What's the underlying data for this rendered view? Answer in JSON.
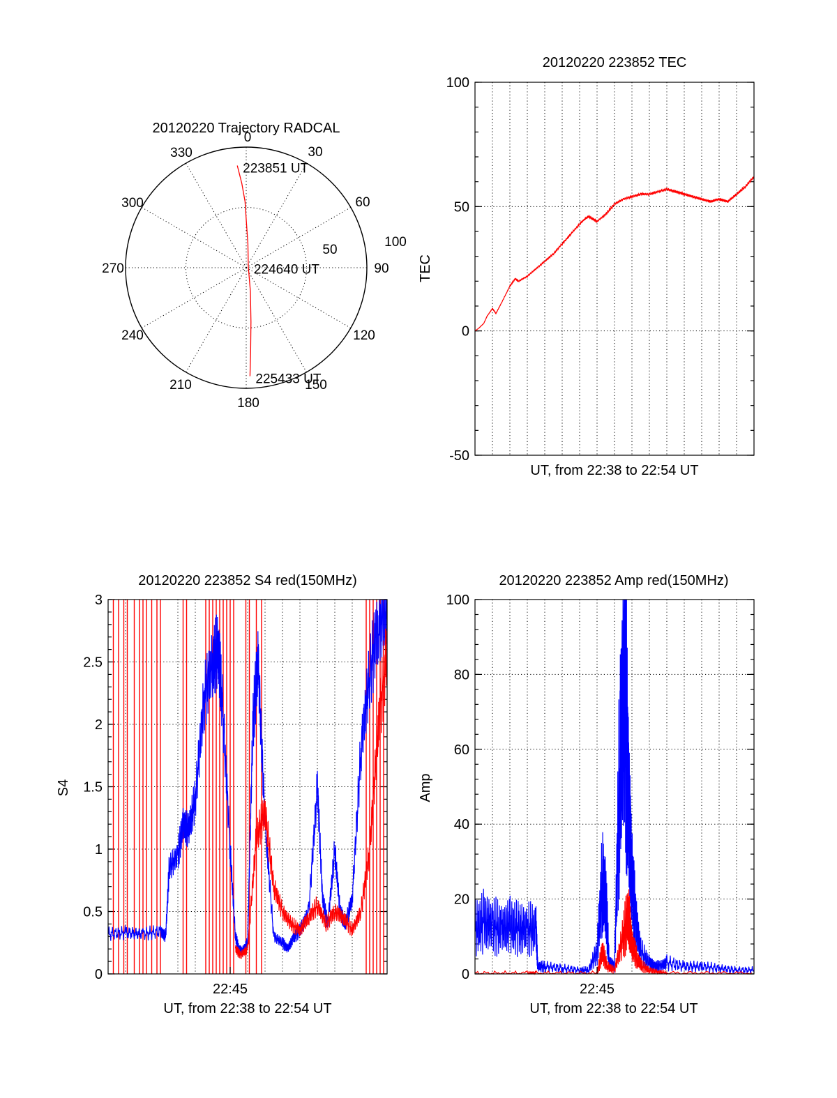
{
  "chart_data": [
    {
      "type": "polar",
      "title": "20120220 Trajectory RADCAL",
      "angle_labels": [
        "0",
        "30",
        "60",
        "90",
        "120",
        "150",
        "180",
        "210",
        "240",
        "270",
        "300",
        "330"
      ],
      "radial_labels": [
        "50",
        "100"
      ],
      "rlim": [
        0,
        100
      ],
      "grid": true,
      "series": [
        {
          "color": "#ff0000",
          "points": [
            [
              -5,
              85
            ],
            [
              -3,
              70
            ],
            [
              -1,
              55
            ],
            [
              0,
              40
            ],
            [
              4,
              20
            ],
            [
              60,
              2
            ],
            [
              170,
              20
            ],
            [
              175,
              45
            ],
            [
              177,
              70
            ],
            [
              178,
              90
            ]
          ]
        }
      ],
      "annotations": [
        {
          "text": "223851 UT",
          "azimuth": -5,
          "r": 85
        },
        {
          "text": "224640 UT",
          "azimuth": 60,
          "r": 2
        },
        {
          "text": "225433 UT",
          "azimuth": 178,
          "r": 90
        }
      ]
    },
    {
      "type": "line",
      "title": "20120220 223852 TEC",
      "xlabel": "UT, from 22:38 to 22:54 UT",
      "ylabel": "TEC",
      "xlim": [
        0,
        16
      ],
      "ylim": [
        -50,
        100
      ],
      "yticks": [
        "-50",
        "0",
        "50",
        "100"
      ],
      "grid": true,
      "series": [
        {
          "color": "#ff0000",
          "x": [
            0,
            0.2,
            0.5,
            0.7,
            1,
            1.2,
            1.5,
            2,
            2.3,
            2.5,
            3,
            3.5,
            4,
            4.5,
            5,
            5.5,
            6,
            6.3,
            6.5,
            7,
            7.5,
            8,
            8.5,
            9,
            9.5,
            10,
            10.5,
            11,
            11.5,
            12,
            12.5,
            13,
            13.5,
            14,
            14.5,
            15,
            15.5,
            16
          ],
          "y": [
            0,
            1,
            3,
            6,
            9,
            7,
            11,
            18,
            21,
            20,
            22,
            25,
            28,
            31,
            35,
            39,
            43,
            45,
            46,
            44,
            47,
            51,
            53,
            54,
            55,
            55,
            56,
            57,
            56,
            55,
            54,
            53,
            52,
            53,
            52,
            55,
            58,
            62
          ]
        }
      ]
    },
    {
      "type": "line",
      "title": "20120220 223852 S4 red(150MHz)",
      "xlabel": "UT, from 22:38 to 22:54 UT",
      "ylabel": "S4",
      "xticklabel": "22:45",
      "xlim": [
        0,
        16
      ],
      "ylim": [
        0,
        3
      ],
      "yticks": [
        "0",
        "0.5",
        "1",
        "1.5",
        "2",
        "2.5",
        "3"
      ],
      "grid": true,
      "series": [
        {
          "color": "#0000ff",
          "x": [
            0,
            1,
            2,
            3,
            3.3,
            3.5,
            4,
            4.3,
            4.6,
            5,
            5.5,
            6,
            6.3,
            6.5,
            7,
            7.3,
            7.5,
            7.7,
            8,
            8.3,
            8.6,
            9,
            9.5,
            10,
            10.3,
            10.6,
            11,
            11.5,
            12,
            12.3,
            12.6,
            13,
            13.3,
            13.6,
            14,
            14.5,
            15,
            15.5,
            16
          ],
          "y": [
            0.32,
            0.33,
            0.32,
            0.34,
            0.3,
            0.85,
            0.95,
            1.2,
            1.15,
            1.4,
            2.2,
            2.5,
            2.6,
            2.3,
            1.0,
            0.3,
            0.2,
            0.18,
            0.25,
            2.0,
            2.5,
            1.2,
            0.3,
            0.25,
            0.2,
            0.28,
            0.35,
            0.5,
            1.5,
            0.6,
            0.4,
            1.0,
            0.5,
            0.4,
            0.6,
            1.8,
            2.4,
            2.8,
            2.9
          ]
        },
        {
          "color": "#ff0000",
          "x": [
            7.3,
            7.6,
            8,
            8.5,
            9,
            9.5,
            10,
            10.5,
            11,
            11.5,
            12,
            12.5,
            13,
            13.5,
            14,
            14.5,
            15,
            15.5,
            16
          ],
          "y": [
            0.2,
            0.15,
            0.2,
            1.1,
            1.3,
            0.7,
            0.5,
            0.4,
            0.35,
            0.45,
            0.55,
            0.4,
            0.5,
            0.45,
            0.35,
            0.5,
            1.0,
            2.0,
            2.6
          ]
        }
      ],
      "spikes": {
        "color": "#ff0000",
        "x": [
          0.3,
          0.6,
          0.9,
          1.1,
          1.5,
          1.8,
          2.0,
          2.2,
          2.5,
          2.8,
          3.0,
          4.3,
          4.5,
          5.6,
          5.8,
          6.0,
          6.2,
          6.4,
          6.6,
          6.8,
          7.0,
          7.2,
          7.9,
          8.1,
          8.5,
          8.8,
          14.8,
          15.0,
          15.2,
          15.4,
          15.6,
          15.8
        ]
      }
    },
    {
      "type": "line",
      "title": "20120220 223852 Amp red(150MHz)",
      "xlabel": "UT, from 22:38 to 22:54 UT",
      "ylabel": "Amp",
      "xticklabel": "22:45",
      "xlim": [
        0,
        16
      ],
      "ylim": [
        0,
        100
      ],
      "yticks": [
        "0",
        "20",
        "40",
        "60",
        "80",
        "100"
      ],
      "grid": true,
      "series": [
        {
          "color": "#0000ff",
          "x": [
            0,
            0.5,
            1,
            1.5,
            2,
            2.5,
            3,
            3.5,
            3.6,
            4,
            5,
            6,
            6.5,
            7,
            7.3,
            7.5,
            7.7,
            8,
            8.3,
            8.6,
            8.8,
            9,
            9.2,
            9.5,
            10,
            10.3,
            10.6,
            11,
            12,
            13,
            14,
            15,
            16
          ],
          "y": [
            12,
            14,
            13,
            12,
            13,
            12,
            12,
            12,
            2,
            2,
            1.5,
            1,
            1,
            6,
            25,
            20,
            3,
            2,
            55,
            80,
            45,
            25,
            15,
            6,
            3,
            2,
            2,
            3,
            2,
            2,
            1.5,
            1,
            1
          ]
        },
        {
          "color": "#ff0000",
          "x": [
            0,
            3,
            3.5,
            7,
            7.3,
            7.6,
            8,
            8.5,
            8.8,
            9,
            9.3,
            9.6,
            10,
            10.5,
            11,
            16
          ],
          "y": [
            0.2,
            0.2,
            0.2,
            0.2,
            6,
            2,
            1,
            10,
            16,
            8,
            4,
            2,
            1,
            0.5,
            0.2,
            0.2
          ]
        }
      ]
    }
  ]
}
